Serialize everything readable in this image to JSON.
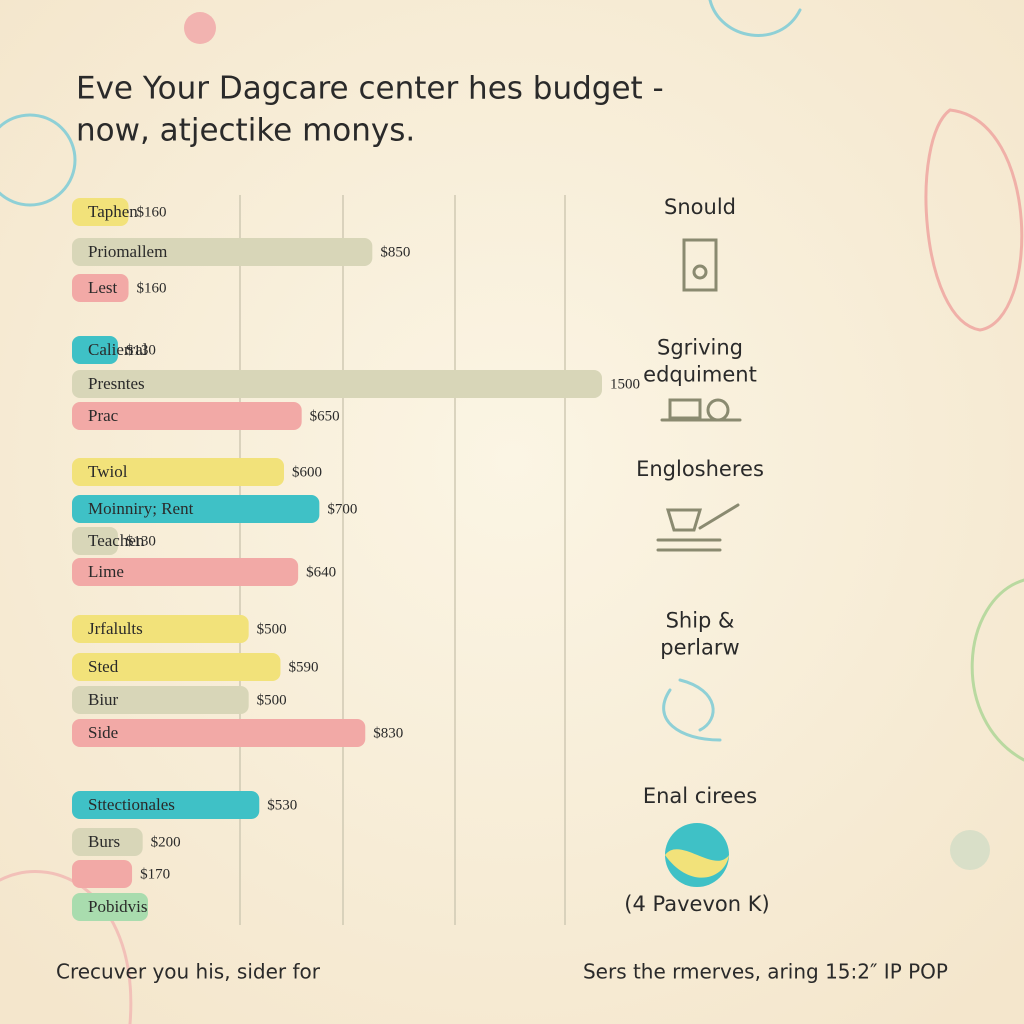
{
  "chart_data": {
    "type": "bar",
    "orientation": "horizontal",
    "title": [
      "Eve Your Dagcare center hes budget -",
      "now, atjectike monys."
    ],
    "categories": [
      "Taphen",
      "Priomallem",
      "Lest",
      "Calierral",
      "Presntes",
      "Prac",
      "Twiol",
      "Moinniry; Rent",
      "Teachen",
      "Lime",
      "Jrfalults",
      "Sted",
      "Biur",
      "Side",
      "Sttectionales",
      "Burs",
      null,
      "Pobidvis"
    ],
    "values": [
      160,
      850,
      160,
      130,
      1500,
      650,
      600,
      700,
      130,
      640,
      500,
      590,
      500,
      830,
      530,
      200,
      170,
      null
    ],
    "value_labels": [
      "$160",
      "$850",
      "$160",
      "$130",
      "1500",
      "$650",
      "$600",
      "$700",
      "$130",
      "$640",
      "$500",
      "$590",
      "$500",
      "$830",
      "$530",
      "$200",
      "$170",
      null
    ],
    "colors": [
      "#f2e27a",
      "#d8d6b8",
      "#f2a9a6",
      "#3fc1c6",
      "#d8d6b8",
      "#f2a9a6",
      "#f2e27a",
      "#3fc1c6",
      "#d8d6b8",
      "#f2a9a6",
      "#f2e27a",
      "#f2e27a",
      "#d8d6b8",
      "#f2a9a6",
      "#3fc1c6",
      "#d8d6b8",
      "#f2a9a6",
      "#a9dcae"
    ],
    "side_labels": [
      [
        "Snould"
      ],
      [
        "Sgriving",
        "edquiment"
      ],
      [
        "Englosheres"
      ],
      [
        "Ship &",
        "perlarw"
      ],
      [
        "Enal cirees"
      ]
    ],
    "side_note": "(4 Pavevon K)",
    "footer_left": "Crecuver you his, sider for",
    "footer_right": "Sers the rmerves, aring 15:2″ IP POP"
  }
}
